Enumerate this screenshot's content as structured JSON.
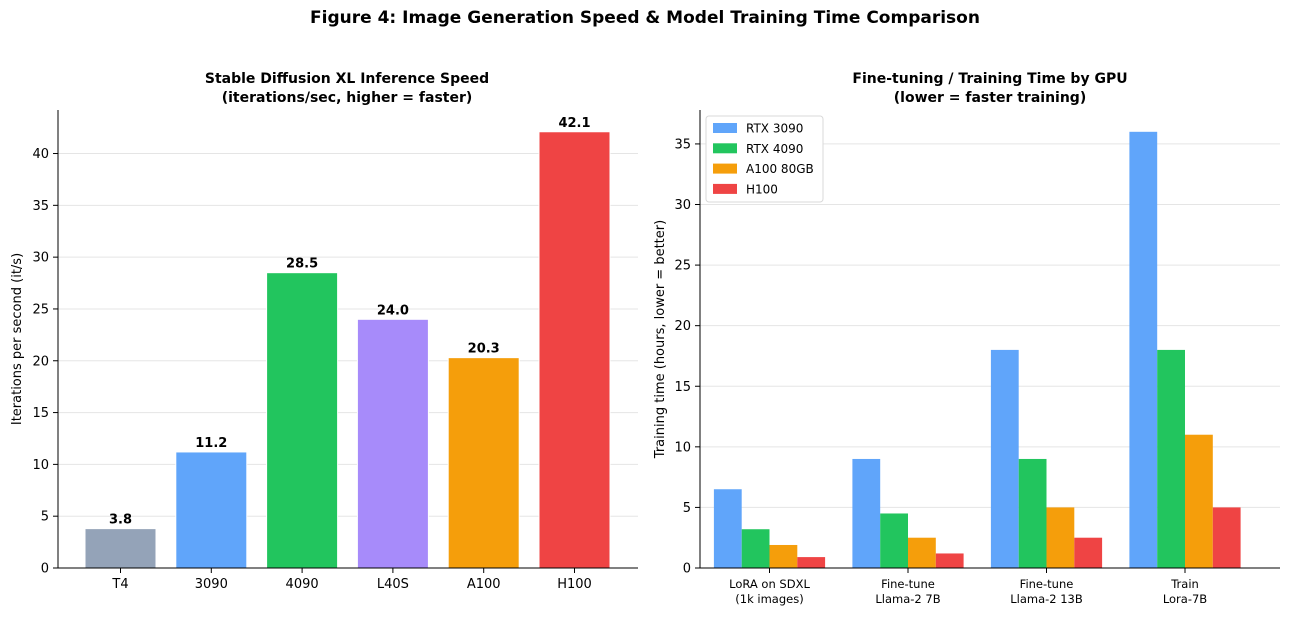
{
  "figure": {
    "title": "Figure 4: Image Generation Speed & Model Training Time Comparison"
  },
  "chart_data": [
    {
      "type": "bar",
      "title": "Stable Diffusion XL Inference Speed",
      "subtitle": "(iterations/sec, higher = faster)",
      "xlabel": "",
      "ylabel": "Iterations per second (it/s)",
      "ylim": [
        0,
        44.2
      ],
      "yticks": [
        0,
        5,
        10,
        15,
        20,
        25,
        30,
        35,
        40
      ],
      "grid": true,
      "categories": [
        "T4",
        "3090",
        "4090",
        "L40S",
        "A100",
        "H100"
      ],
      "values": [
        3.8,
        11.2,
        28.5,
        24.0,
        20.3,
        42.1
      ],
      "value_labels": [
        "3.8",
        "11.2",
        "28.5",
        "24.0",
        "20.3",
        "42.1"
      ],
      "colors": [
        "#94a3b8",
        "#60a5fa",
        "#22c55e",
        "#a78bfa",
        "#f59e0b",
        "#ef4444"
      ]
    },
    {
      "type": "bar",
      "title": "Fine-tuning / Training Time by GPU",
      "subtitle": "(lower = faster training)",
      "xlabel": "",
      "ylabel": "Training time (hours, lower = better)",
      "ylim": [
        0,
        37.8
      ],
      "yticks": [
        0,
        5,
        10,
        15,
        20,
        25,
        30,
        35
      ],
      "grid": true,
      "legend_position": "top-left",
      "categories": [
        [
          "LoRA on SDXL",
          "(1k images)"
        ],
        [
          "Fine-tune",
          "Llama-2 7B"
        ],
        [
          "Fine-tune",
          "Llama-2 13B"
        ],
        [
          "Train",
          "Lora-7B"
        ]
      ],
      "series": [
        {
          "name": "RTX 3090",
          "color": "#60a5fa",
          "values": [
            6.5,
            9.0,
            18.0,
            36.0
          ]
        },
        {
          "name": "RTX 4090",
          "color": "#22c55e",
          "values": [
            3.2,
            4.5,
            9.0,
            18.0
          ]
        },
        {
          "name": "A100 80GB",
          "color": "#f59e0b",
          "values": [
            1.9,
            2.5,
            5.0,
            11.0
          ]
        },
        {
          "name": "H100",
          "color": "#ef4444",
          "values": [
            0.9,
            1.2,
            2.5,
            5.0
          ]
        }
      ]
    }
  ]
}
